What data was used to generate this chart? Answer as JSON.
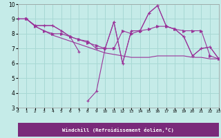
{
  "xlabel": "Windchill (Refroidissement éolien,°C)",
  "bg_color": "#c5ebe8",
  "grid_color": "#a8d8d4",
  "line_color": "#993399",
  "label_bg": "#7a2a7a",
  "label_fg": "#ffffff",
  "xlim": [
    0,
    23
  ],
  "ylim": [
    3,
    10
  ],
  "xticks": [
    0,
    1,
    2,
    3,
    4,
    5,
    6,
    7,
    8,
    9,
    10,
    11,
    12,
    13,
    14,
    15,
    16,
    17,
    18,
    19,
    20,
    21,
    22,
    23
  ],
  "yticks": [
    3,
    4,
    5,
    6,
    7,
    8,
    9,
    10
  ],
  "series": [
    {
      "x": [
        0,
        1,
        2,
        3,
        4,
        5,
        6,
        7,
        8,
        9,
        10,
        11,
        12,
        13,
        14,
        15,
        16,
        17,
        18,
        19,
        20,
        21,
        22,
        23
      ],
      "y": [
        9.0,
        9.0,
        8.55,
        8.55,
        8.55,
        8.2,
        7.8,
        6.8,
        3.45,
        4.1,
        7.0,
        8.8,
        6.0,
        8.2,
        8.2,
        9.4,
        9.9,
        8.5,
        8.3,
        7.8,
        6.5,
        7.0,
        7.1,
        6.3
      ],
      "marker": "+",
      "has_gap": true,
      "gap_segments": [
        {
          "x": [
            0,
            1,
            2,
            3,
            4,
            5,
            6,
            7
          ],
          "y": [
            9.0,
            9.0,
            8.55,
            8.55,
            8.55,
            8.2,
            7.8,
            6.8
          ]
        },
        {
          "x": [
            8,
            9,
            10,
            11,
            12,
            13,
            14,
            15,
            16,
            17,
            18,
            19,
            20,
            21,
            22,
            23
          ],
          "y": [
            3.45,
            4.1,
            7.0,
            8.8,
            6.0,
            8.2,
            8.2,
            9.4,
            9.9,
            8.5,
            8.3,
            7.8,
            6.5,
            7.0,
            7.1,
            6.3
          ]
        }
      ]
    },
    {
      "x": [
        0,
        1,
        2,
        3,
        4,
        5,
        6,
        7,
        8,
        9,
        10,
        11,
        12,
        13,
        14,
        15,
        16,
        17,
        18,
        19,
        20,
        21,
        22,
        23
      ],
      "y": [
        9.0,
        9.0,
        8.5,
        8.2,
        8.0,
        8.0,
        7.8,
        7.6,
        7.4,
        7.2,
        7.0,
        7.0,
        8.2,
        8.0,
        8.2,
        8.3,
        8.5,
        8.5,
        8.3,
        8.2,
        8.2,
        8.2,
        6.5,
        6.3
      ],
      "marker": ">"
    },
    {
      "x": [
        0,
        1,
        2,
        3,
        4,
        5,
        6,
        7,
        8,
        9,
        10,
        11,
        12,
        13,
        14,
        15,
        16,
        17,
        18,
        19,
        20,
        21,
        22,
        23
      ],
      "y": [
        9.0,
        9.0,
        8.55,
        8.55,
        8.55,
        8.2,
        7.8,
        7.6,
        7.5,
        7.0,
        7.0,
        8.8,
        6.0,
        8.2,
        8.2,
        9.4,
        9.9,
        8.5,
        8.3,
        7.8,
        6.5,
        7.0,
        7.1,
        6.3
      ],
      "marker": "+"
    },
    {
      "x": [
        0,
        1,
        2,
        3,
        4,
        5,
        6,
        7,
        8,
        9,
        10,
        11,
        12,
        13,
        14,
        15,
        16,
        17,
        18,
        19,
        20,
        21,
        22,
        23
      ],
      "y": [
        9.0,
        9.0,
        8.5,
        8.2,
        7.9,
        7.7,
        7.5,
        7.3,
        7.1,
        6.9,
        6.7,
        6.6,
        6.5,
        6.4,
        6.4,
        6.4,
        6.5,
        6.5,
        6.5,
        6.5,
        6.4,
        6.4,
        6.3,
        6.3
      ],
      "marker": null
    }
  ]
}
